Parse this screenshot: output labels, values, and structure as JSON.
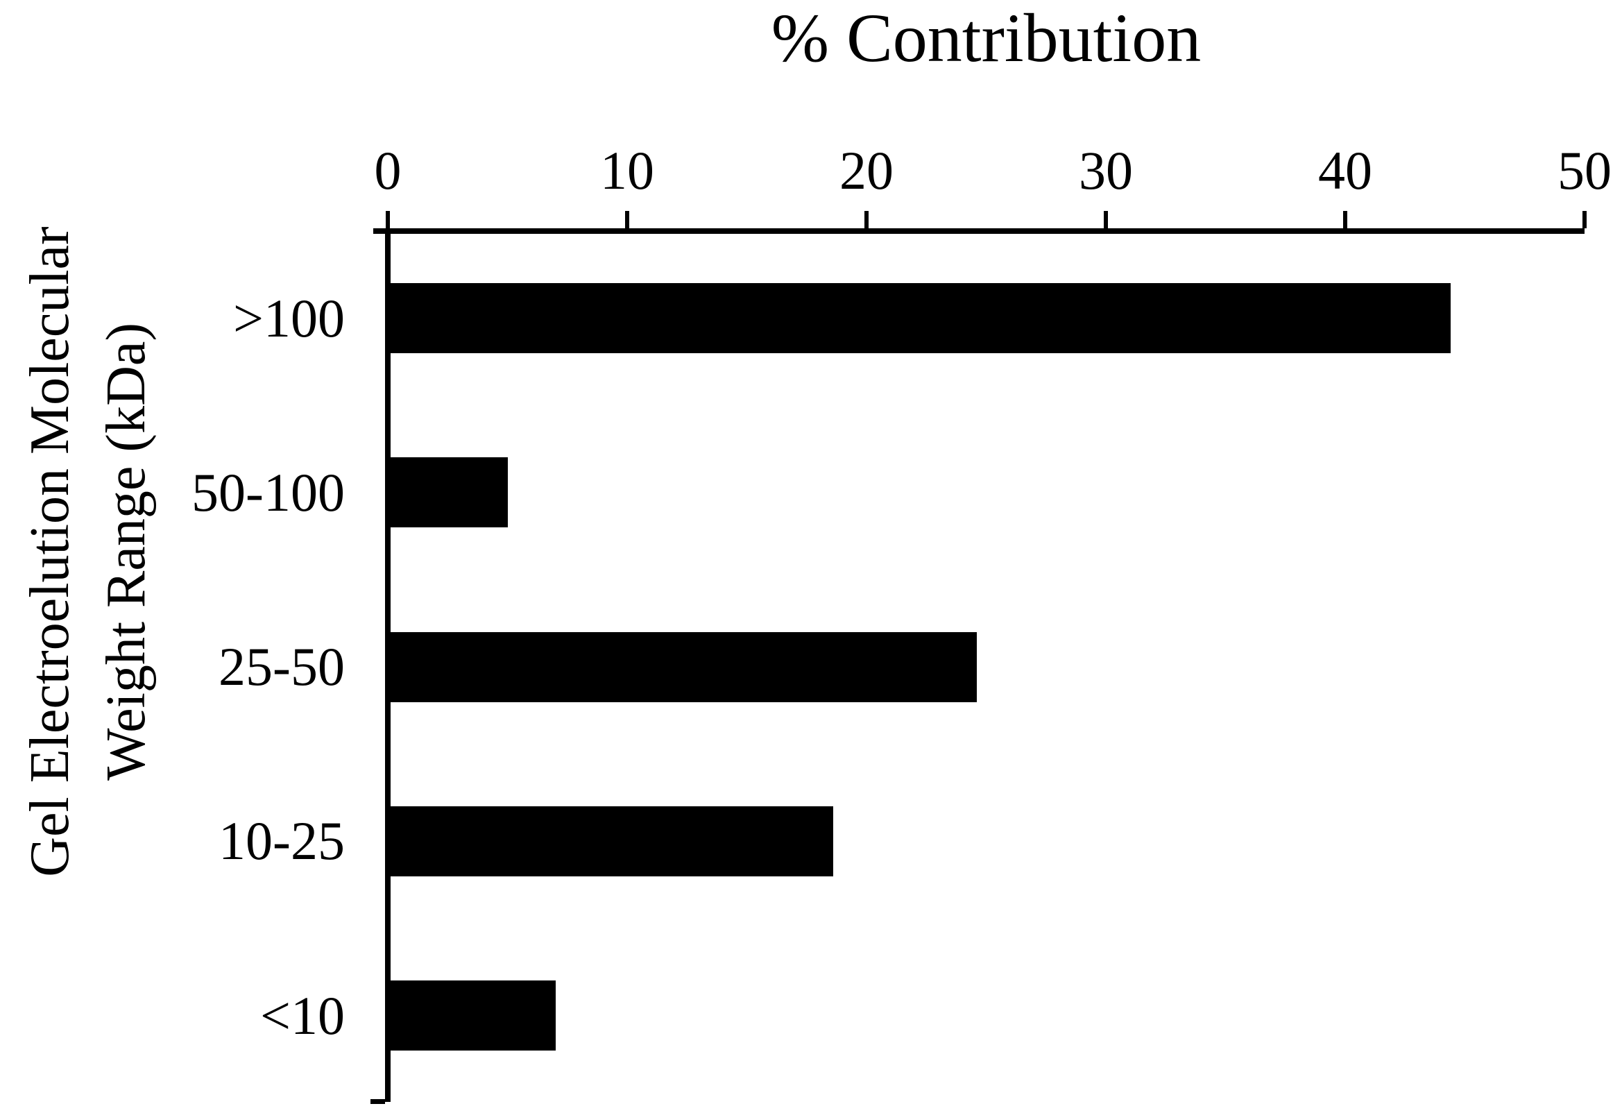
{
  "figure": {
    "background_color": "#ffffff",
    "bar_color": "#000000",
    "axis_color": "#000000",
    "text_color": "#000000"
  },
  "chart_data": {
    "type": "bar",
    "orientation": "horizontal",
    "title": "% Contribution",
    "xlabel": "% Contribution",
    "ylabel": "Gel Electroelution Molecular Weight Range (kDa)",
    "ylabel_line1": "Gel Electroelution Molecular",
    "ylabel_line2": "Weight Range (kDa)",
    "categories": [
      ">100",
      "50-100",
      "25-50",
      "10-25",
      "<10"
    ],
    "values": [
      44.4,
      5.0,
      24.6,
      18.6,
      7.0
    ],
    "series": [
      {
        "name": "% Contribution",
        "values": [
          44.4,
          5.0,
          24.6,
          18.6,
          7.0
        ]
      }
    ],
    "xlim": [
      0,
      50
    ],
    "x_ticks": [
      0,
      10,
      20,
      30,
      40,
      50
    ],
    "x_tick_labels": [
      "0",
      "10",
      "20",
      "30",
      "40",
      "50"
    ],
    "axis_position": "top",
    "grid": false,
    "legend": false
  }
}
